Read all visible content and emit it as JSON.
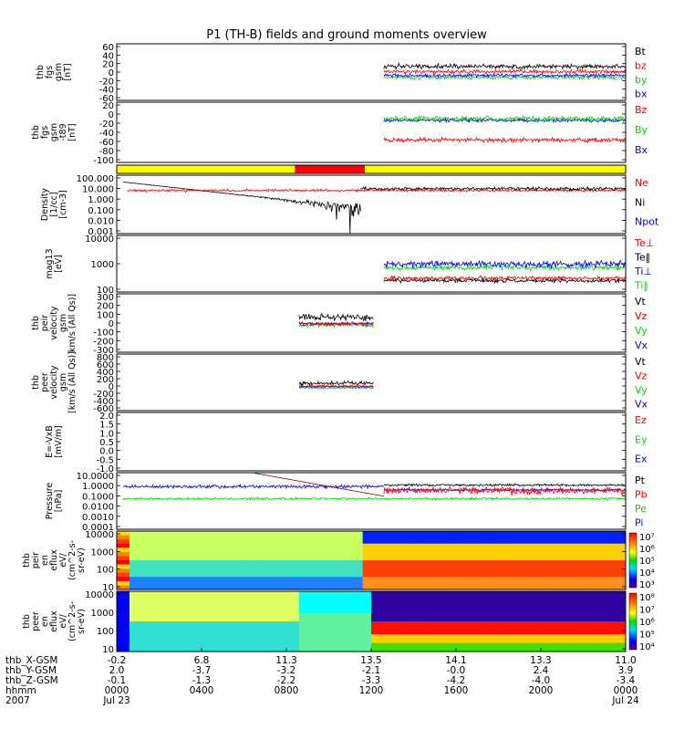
{
  "title": "P1 (TH-B) fields and ground moments overview",
  "colors": {
    "black": "#000000",
    "red": "#ff0000",
    "green": "#00dd00",
    "blue": "#0000ff",
    "yellow": "#ffff00",
    "darkred": "#8b0000"
  },
  "chart_data": [
    {
      "id": "fgs",
      "type": "line",
      "ylabel": [
        "thb",
        "fgs",
        "gsm",
        "[nT]"
      ],
      "ylim": [
        -60,
        60
      ],
      "yticks": [
        "60",
        "40",
        "20",
        "0",
        "-20",
        "-40",
        "-60"
      ],
      "legend": [
        {
          "label": "Bt",
          "color": "black"
        },
        {
          "label": "bz",
          "color": "red"
        },
        {
          "label": "by",
          "color": "green"
        },
        {
          "label": "bx",
          "color": "blue"
        }
      ],
      "series": [
        {
          "color": "green",
          "t": [
            12.6,
            24
          ],
          "base": -11,
          "amp": 6
        },
        {
          "color": "blue",
          "t": [
            12.6,
            24
          ],
          "base": -7,
          "amp": 5
        },
        {
          "color": "red",
          "t": [
            12.6,
            24
          ],
          "base": 1,
          "amp": 6
        },
        {
          "color": "black",
          "t": [
            12.6,
            24
          ],
          "base": 12,
          "amp": 7
        }
      ]
    },
    {
      "id": "fgs_t89",
      "type": "line",
      "ylabel": [
        "thb",
        "fgs",
        "gsm",
        "-t89",
        "[nT]"
      ],
      "ylim": [
        -110,
        30
      ],
      "yticks": [
        "20",
        "0",
        "-20",
        "-40",
        "-60",
        "-80",
        "-100"
      ],
      "legend": [
        {
          "label": "Bz",
          "color": "red"
        },
        {
          "label": "By",
          "color": "green"
        },
        {
          "label": "Bx",
          "color": "blue"
        }
      ],
      "series": [
        {
          "color": "blue",
          "t": [
            12.6,
            24
          ],
          "base": -12,
          "amp": 6
        },
        {
          "color": "green",
          "t": [
            12.6,
            24
          ],
          "base": -8,
          "amp": 8
        },
        {
          "color": "red",
          "t": [
            12.6,
            24
          ],
          "base": -58,
          "amp": 7
        }
      ]
    },
    {
      "id": "mode_bar",
      "type": "bar",
      "segments": [
        {
          "t": [
            0,
            8.4
          ],
          "color": "yellow"
        },
        {
          "t": [
            8.4,
            11.7
          ],
          "color": "red"
        },
        {
          "t": [
            11.7,
            24
          ],
          "color": "yellow"
        }
      ]
    },
    {
      "id": "density",
      "type": "line",
      "log": true,
      "ylabel": [
        "Density",
        "[1/cc]",
        "[cm-3]"
      ],
      "ylim": [
        0.001,
        100
      ],
      "yticks": [
        "100.000",
        "10.000",
        "1.000",
        "0.100",
        "0.010",
        "0.001"
      ],
      "legend": [
        {
          "label": "Ne",
          "color": "red"
        },
        {
          "label": "Ni",
          "color": "black"
        },
        {
          "label": "Npot",
          "color": "blue"
        }
      ],
      "series": [
        {
          "color": "black",
          "t": [
            0.3,
            11.5
          ],
          "base": 3.0,
          "amp": 0.4
        },
        {
          "color": "red",
          "t": [
            0.5,
            24
          ],
          "base": 5.0,
          "amp": 0.15
        },
        {
          "color": "black",
          "t": [
            11.5,
            24
          ],
          "base": 7.0,
          "amp": 0.2
        }
      ]
    },
    {
      "id": "temperature",
      "type": "line",
      "log": true,
      "ylabel": [
        "mag13",
        "[eV]"
      ],
      "ylim": [
        10,
        10000
      ],
      "yticks": [
        "10000",
        "1000",
        "100"
      ],
      "legend": [
        {
          "label": "Te⊥",
          "color": "red"
        },
        {
          "label": "Te‖",
          "color": "black"
        },
        {
          "label": "Ti⊥",
          "color": "blue"
        },
        {
          "label": "Ti‖",
          "color": "green"
        }
      ],
      "series": [
        {
          "color": "green",
          "t": [
            12.6,
            24
          ],
          "base": 200,
          "amp": 0.2
        },
        {
          "color": "blue",
          "t": [
            12.6,
            24
          ],
          "base": 300,
          "amp": 0.25
        },
        {
          "color": "red",
          "t": [
            12.6,
            24
          ],
          "base": 55,
          "amp": 0.15
        },
        {
          "color": "black",
          "t": [
            12.6,
            24
          ],
          "base": 40,
          "amp": 0.15
        }
      ]
    },
    {
      "id": "peir_velocity",
      "type": "line",
      "ylabel": [
        "thb",
        "peir",
        "velocity",
        "gsm",
        "km/s (All Qs)]"
      ],
      "ylim": [
        -300,
        300
      ],
      "yticks": [
        "300",
        "200",
        "100",
        "0",
        "-100",
        "-200",
        "-300"
      ],
      "legend": [
        {
          "label": "Vt",
          "color": "black"
        },
        {
          "label": "Vz",
          "color": "red"
        },
        {
          "label": "Vy",
          "color": "green"
        },
        {
          "label": "Vx",
          "color": "blue"
        }
      ],
      "series": [
        {
          "color": "green",
          "t": [
            8.6,
            12.1
          ],
          "base": -20,
          "amp": 30
        },
        {
          "color": "blue",
          "t": [
            8.6,
            12.1
          ],
          "base": -5,
          "amp": 20
        },
        {
          "color": "red",
          "t": [
            8.6,
            12.1
          ],
          "base": -10,
          "amp": 35
        },
        {
          "color": "black",
          "t": [
            8.6,
            12.1
          ],
          "base": 60,
          "amp": 50
        }
      ]
    },
    {
      "id": "peer_velocity",
      "type": "line",
      "ylabel": [
        "thb",
        "peer",
        "velocity",
        "gsm",
        "[km/s (All Qs)]"
      ],
      "ylim": [
        -600,
        800
      ],
      "yticks": [
        "800",
        "600",
        "400",
        "200",
        "0",
        "-200",
        "-400",
        "-600"
      ],
      "legend": [
        {
          "label": "Vt",
          "color": "black"
        },
        {
          "label": "Vz",
          "color": "red"
        },
        {
          "label": "Vy",
          "color": "green"
        },
        {
          "label": "Vx",
          "color": "blue"
        }
      ],
      "series": [
        {
          "color": "green",
          "t": [
            8.6,
            12.1
          ],
          "base": -40,
          "amp": 35
        },
        {
          "color": "blue",
          "t": [
            8.6,
            12.1
          ],
          "base": -10,
          "amp": 25
        },
        {
          "color": "red",
          "t": [
            8.6,
            12.1
          ],
          "base": 10,
          "amp": 30
        },
        {
          "color": "black",
          "t": [
            8.6,
            12.1
          ],
          "base": 80,
          "amp": 70
        }
      ]
    },
    {
      "id": "efield",
      "type": "line",
      "ylabel": [
        "E=-VxB",
        "[mV/m]"
      ],
      "ylim": [
        -1.0,
        2.0
      ],
      "yticks": [
        "2.0",
        "1.5",
        "1.0",
        "0.5",
        "0.0",
        "-0.5",
        "-1.0"
      ],
      "legend": [
        {
          "label": "Ez",
          "color": "red"
        },
        {
          "label": "Ey",
          "color": "green"
        },
        {
          "label": "Ex",
          "color": "blue"
        }
      ],
      "series": []
    },
    {
      "id": "pressure",
      "type": "line",
      "log": true,
      "ylabel": [
        "Pressure",
        "[nPa]"
      ],
      "ylim": [
        0.0001,
        10
      ],
      "yticks": [
        "10.0000",
        "1.0000",
        "0.1000",
        "0.0100",
        "0.0010",
        "0.0001"
      ],
      "legend": [
        {
          "label": "Pt",
          "color": "black"
        },
        {
          "label": "Pb",
          "color": "red"
        },
        {
          "label": "Pe",
          "color": "green"
        },
        {
          "label": "Pi",
          "color": "blue"
        }
      ],
      "series": [
        {
          "color": "green",
          "t": [
            0.3,
            24
          ],
          "base": 0.05,
          "amp": 0.15
        },
        {
          "color": "blue",
          "t": [
            0.3,
            12.6
          ],
          "base": 0.6,
          "amp": 0.2
        },
        {
          "color": "blue",
          "t": [
            12.6,
            24
          ],
          "base": 0.3,
          "amp": 0.15
        },
        {
          "color": "darkred",
          "t": [
            6.5,
            12.6
          ],
          "base": 9.0,
          "amp": 0.02
        },
        {
          "color": "red",
          "t": [
            12.6,
            24
          ],
          "base": 0.25,
          "amp": 0.45
        },
        {
          "color": "black",
          "t": [
            12.6,
            24
          ],
          "base": 0.8,
          "amp": 0.15
        }
      ]
    },
    {
      "id": "peir_spec",
      "type": "heatmap",
      "ylabel": [
        "thb",
        "peir",
        "en",
        "eflux",
        "eV/",
        "(cm^2-s-",
        "sr-eV)"
      ],
      "yticks": [
        "10000",
        "1000",
        "100",
        "10"
      ],
      "colorbar_ticks": [
        "10⁷",
        "10⁶",
        "10⁵",
        "10⁴",
        "10³"
      ]
    },
    {
      "id": "peer_spec",
      "type": "heatmap",
      "ylabel": [
        "thb",
        "peer",
        "en",
        "eflux",
        "eV/",
        "(cm^2-s-",
        "sr-eV)"
      ],
      "yticks": [
        "10000",
        "1000",
        "100",
        "10"
      ],
      "colorbar_ticks": [
        "10⁸",
        "10⁷",
        "10⁶",
        "10⁵",
        "10⁴"
      ]
    }
  ],
  "x_axis": {
    "row_labels": [
      "thb_X-GSM",
      "thb_Y-GSM",
      "thb_Z-GSM",
      "hhmm",
      "2007"
    ],
    "ticks": [
      {
        "t": 0,
        "vals": [
          "-0.2",
          "2.0",
          "-0.1",
          "0000",
          "Jul 23"
        ]
      },
      {
        "t": 4,
        "vals": [
          "6.8",
          "-3.7",
          "-1.3",
          "0400",
          ""
        ]
      },
      {
        "t": 8,
        "vals": [
          "11.3",
          "-3.2",
          "-2.2",
          "0800",
          ""
        ]
      },
      {
        "t": 12,
        "vals": [
          "13.5",
          "-2.1",
          "-3.3",
          "1200",
          ""
        ]
      },
      {
        "t": 16,
        "vals": [
          "14.1",
          "-0.0",
          "-4.2",
          "1600",
          ""
        ]
      },
      {
        "t": 20,
        "vals": [
          "13.3",
          "2.4",
          "-4.0",
          "2000",
          ""
        ]
      },
      {
        "t": 24,
        "vals": [
          "11.0",
          "3.9",
          "-3.4",
          "0000",
          "Jul 24"
        ]
      }
    ]
  }
}
